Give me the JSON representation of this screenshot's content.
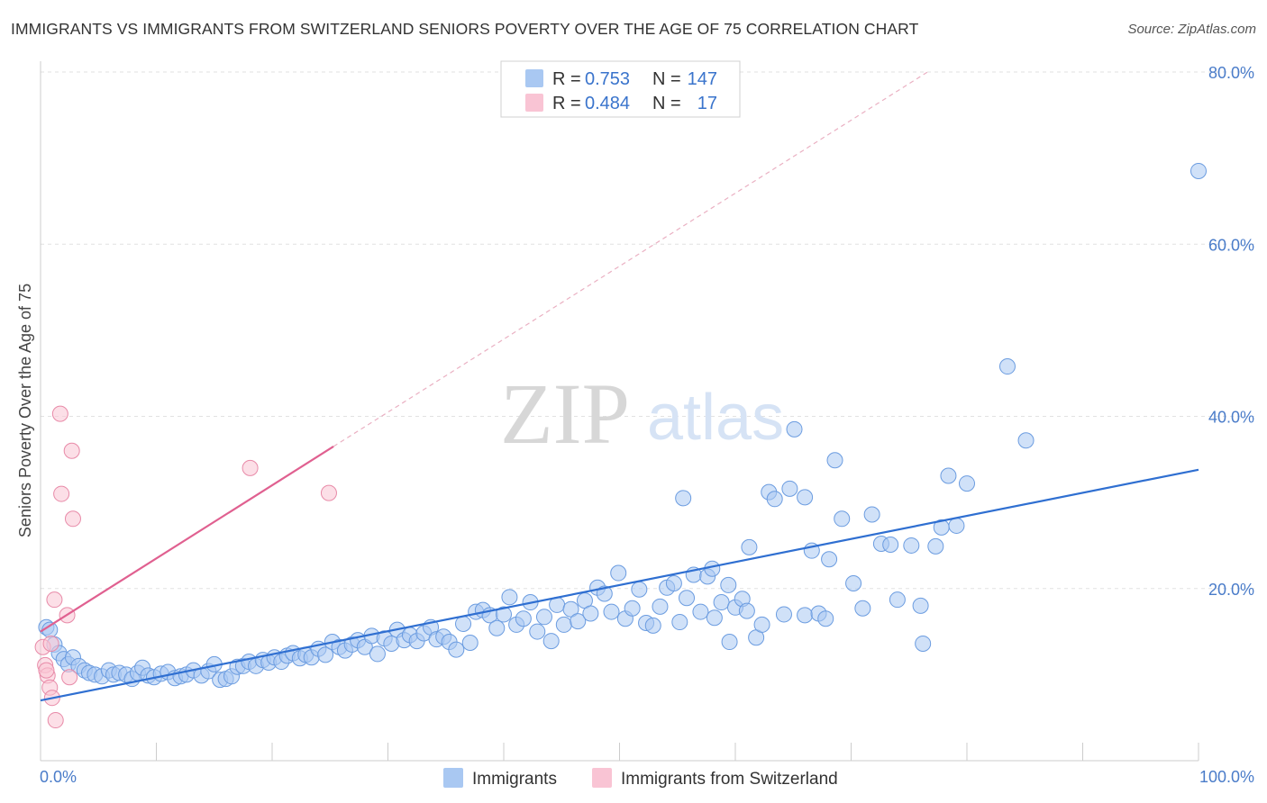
{
  "title": "IMMIGRANTS VS IMMIGRANTS FROM SWITZERLAND SENIORS POVERTY OVER THE AGE OF 75 CORRELATION CHART",
  "source": "Source: ZipAtlas.com",
  "watermark": {
    "zip": "ZIP",
    "atlas": "atlas"
  },
  "legend_stats": [
    {
      "r_label": "R =",
      "r_value": "0.753",
      "n_label": "N =",
      "n_value": "147",
      "color": "#a9c8f2",
      "stroke": "#6b9ce0"
    },
    {
      "r_label": "R =",
      "r_value": "0.484",
      "n_label": "N =",
      "n_value": "17",
      "color": "#f9c4d4",
      "stroke": "#e88aa8"
    }
  ],
  "chart_data": {
    "type": "scatter",
    "title": "IMMIGRANTS VS IMMIGRANTS FROM SWITZERLAND SENIORS POVERTY OVER THE AGE OF 75 CORRELATION CHART",
    "xlabel": "",
    "ylabel": "Seniors Poverty Over the Age of 75",
    "xlim": [
      0,
      100
    ],
    "ylim": [
      0,
      80
    ],
    "x_tick_labels": [
      "0.0%",
      "100.0%"
    ],
    "y_ticks": [
      20,
      40,
      60,
      80
    ],
    "y_tick_labels": [
      "20.0%",
      "40.0%",
      "60.0%",
      "80.0%"
    ],
    "grid": true,
    "legend_placement": "bottom-center",
    "series": [
      {
        "name": "Immigrants",
        "color": "#a9c8f2",
        "stroke": "#6b9ce0",
        "trend": {
          "x": [
            0,
            100
          ],
          "y": [
            7.0,
            33.8
          ],
          "color": "#2f6fd1"
        },
        "points": [
          [
            0.5,
            15.5
          ],
          [
            0.8,
            15.2
          ],
          [
            1.2,
            13.5
          ],
          [
            1.6,
            12.5
          ],
          [
            2.0,
            11.8
          ],
          [
            2.4,
            11.2
          ],
          [
            2.8,
            12.0
          ],
          [
            3.3,
            11.0
          ],
          [
            3.8,
            10.5
          ],
          [
            4.2,
            10.2
          ],
          [
            4.7,
            10.0
          ],
          [
            5.3,
            9.8
          ],
          [
            5.9,
            10.5
          ],
          [
            6.3,
            10.0
          ],
          [
            6.8,
            10.2
          ],
          [
            7.4,
            10.0
          ],
          [
            7.9,
            9.5
          ],
          [
            8.4,
            10.2
          ],
          [
            8.8,
            10.8
          ],
          [
            9.3,
            9.9
          ],
          [
            9.8,
            9.7
          ],
          [
            10.4,
            10.1
          ],
          [
            11.0,
            10.3
          ],
          [
            11.6,
            9.6
          ],
          [
            12.1,
            9.8
          ],
          [
            12.6,
            10.0
          ],
          [
            13.2,
            10.5
          ],
          [
            13.9,
            9.9
          ],
          [
            14.5,
            10.4
          ],
          [
            15.0,
            11.2
          ],
          [
            15.5,
            9.4
          ],
          [
            16.0,
            9.5
          ],
          [
            16.5,
            9.8
          ],
          [
            17.0,
            10.9
          ],
          [
            17.5,
            11.0
          ],
          [
            18.0,
            11.5
          ],
          [
            18.6,
            11.0
          ],
          [
            19.2,
            11.7
          ],
          [
            19.7,
            11.4
          ],
          [
            20.2,
            12.0
          ],
          [
            20.8,
            11.5
          ],
          [
            21.3,
            12.2
          ],
          [
            21.8,
            12.5
          ],
          [
            22.4,
            11.9
          ],
          [
            22.9,
            12.3
          ],
          [
            23.4,
            12.0
          ],
          [
            24.0,
            13.0
          ],
          [
            24.6,
            12.3
          ],
          [
            25.2,
            13.8
          ],
          [
            25.8,
            13.2
          ],
          [
            26.3,
            12.8
          ],
          [
            26.9,
            13.5
          ],
          [
            27.4,
            14.0
          ],
          [
            28.0,
            13.2
          ],
          [
            28.6,
            14.5
          ],
          [
            29.1,
            12.4
          ],
          [
            29.7,
            14.2
          ],
          [
            30.3,
            13.6
          ],
          [
            30.8,
            15.2
          ],
          [
            31.4,
            14.0
          ],
          [
            31.9,
            14.6
          ],
          [
            32.5,
            13.9
          ],
          [
            33.1,
            14.8
          ],
          [
            33.7,
            15.5
          ],
          [
            34.2,
            14.1
          ],
          [
            34.8,
            14.4
          ],
          [
            35.3,
            13.8
          ],
          [
            35.9,
            12.9
          ],
          [
            36.5,
            15.9
          ],
          [
            37.1,
            13.7
          ],
          [
            37.6,
            17.3
          ],
          [
            38.2,
            17.5
          ],
          [
            38.8,
            16.9
          ],
          [
            39.4,
            15.4
          ],
          [
            40.0,
            17.0
          ],
          [
            40.5,
            19.0
          ],
          [
            41.1,
            15.8
          ],
          [
            41.7,
            16.5
          ],
          [
            42.3,
            18.4
          ],
          [
            42.9,
            15.0
          ],
          [
            43.5,
            16.7
          ],
          [
            44.1,
            13.9
          ],
          [
            44.6,
            18.1
          ],
          [
            45.2,
            15.8
          ],
          [
            45.8,
            17.6
          ],
          [
            46.4,
            16.2
          ],
          [
            47.0,
            18.6
          ],
          [
            47.5,
            17.1
          ],
          [
            48.1,
            20.1
          ],
          [
            48.7,
            19.4
          ],
          [
            49.3,
            17.3
          ],
          [
            49.9,
            21.8
          ],
          [
            50.5,
            16.5
          ],
          [
            51.1,
            17.7
          ],
          [
            51.7,
            19.9
          ],
          [
            52.3,
            16.0
          ],
          [
            52.9,
            15.7
          ],
          [
            53.5,
            17.9
          ],
          [
            54.1,
            20.1
          ],
          [
            54.7,
            20.6
          ],
          [
            55.2,
            16.1
          ],
          [
            55.8,
            18.9
          ],
          [
            56.4,
            21.6
          ],
          [
            57.0,
            17.3
          ],
          [
            57.6,
            21.4
          ],
          [
            58.2,
            16.6
          ],
          [
            58.8,
            18.4
          ],
          [
            59.4,
            20.4
          ],
          [
            60.0,
            17.8
          ],
          [
            60.6,
            18.8
          ],
          [
            61.2,
            24.8
          ],
          [
            61.8,
            14.3
          ],
          [
            62.3,
            15.8
          ],
          [
            62.9,
            31.2
          ],
          [
            63.4,
            30.4
          ],
          [
            64.2,
            17.0
          ],
          [
            64.7,
            31.6
          ],
          [
            65.1,
            38.5
          ],
          [
            66.0,
            16.9
          ],
          [
            66.6,
            24.4
          ],
          [
            67.2,
            17.1
          ],
          [
            68.1,
            23.4
          ],
          [
            68.6,
            34.9
          ],
          [
            69.2,
            28.1
          ],
          [
            70.2,
            20.6
          ],
          [
            71.0,
            17.7
          ],
          [
            71.8,
            28.6
          ],
          [
            72.6,
            25.2
          ],
          [
            73.4,
            25.1
          ],
          [
            74.0,
            18.7
          ],
          [
            75.2,
            25.0
          ],
          [
            76.0,
            18.0
          ],
          [
            77.3,
            24.9
          ],
          [
            77.8,
            27.1
          ],
          [
            78.4,
            33.1
          ],
          [
            79.1,
            27.3
          ],
          [
            80.0,
            32.2
          ],
          [
            83.5,
            45.8
          ],
          [
            85.1,
            37.2
          ],
          [
            100.0,
            68.5
          ],
          [
            55.5,
            30.5
          ],
          [
            58.0,
            22.3
          ],
          [
            66.0,
            30.6
          ],
          [
            59.5,
            13.8
          ],
          [
            61.0,
            17.4
          ],
          [
            67.8,
            16.5
          ],
          [
            76.2,
            13.6
          ]
        ]
      },
      {
        "name": "Immigrants from Switzerland",
        "color": "#f9c4d4",
        "stroke": "#e88aa8",
        "trend": {
          "x": [
            0,
            25.3
          ],
          "y": [
            15.0,
            36.5
          ],
          "color": "#e06090",
          "dashed_extension": {
            "x": [
              25.3,
              76.6
            ],
            "y": [
              36.5,
              80.0
            ]
          }
        },
        "points": [
          [
            0.2,
            13.2
          ],
          [
            0.4,
            11.1
          ],
          [
            0.6,
            9.9
          ],
          [
            0.8,
            8.5
          ],
          [
            1.0,
            7.3
          ],
          [
            1.2,
            18.7
          ],
          [
            1.3,
            4.7
          ],
          [
            1.7,
            40.3
          ],
          [
            1.8,
            31.0
          ],
          [
            2.3,
            16.9
          ],
          [
            2.5,
            9.7
          ],
          [
            2.7,
            36.0
          ],
          [
            2.8,
            28.1
          ],
          [
            18.1,
            34.0
          ],
          [
            24.9,
            31.1
          ],
          [
            0.5,
            10.5
          ],
          [
            0.9,
            13.6
          ]
        ]
      }
    ]
  }
}
